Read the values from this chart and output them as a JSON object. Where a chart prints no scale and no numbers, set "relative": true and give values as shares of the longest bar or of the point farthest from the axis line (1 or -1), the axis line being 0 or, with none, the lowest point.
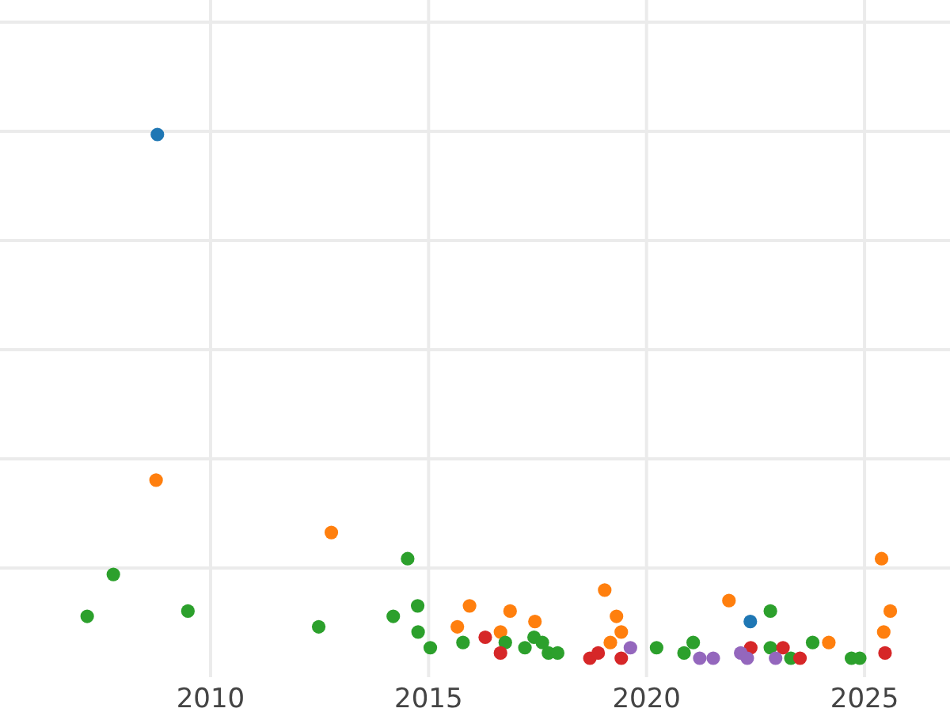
{
  "chart_data": {
    "type": "scatter",
    "relative": true,
    "grid": true,
    "marker": "circle",
    "xlim": [
      2005.17,
      2026.96
    ],
    "xticks": [
      2010,
      2015,
      2020,
      2025
    ],
    "series": [
      {
        "color": "#1f77b4",
        "x": [
          2008.78,
          2022.38
        ],
        "values": [
          1.0,
          0.07
        ]
      },
      {
        "color": "#ff7f0e",
        "x": [
          2008.75,
          2012.77,
          2019.04,
          2015.94,
          2015.66,
          2016.87,
          2016.65,
          2017.44,
          2019.31,
          2019.42,
          2019.17,
          2021.89,
          2024.18,
          2025.39,
          2025.59,
          2025.44
        ],
        "values": [
          0.34,
          0.24,
          0.13,
          0.1,
          0.06,
          0.09,
          0.05,
          0.07,
          0.08,
          0.05,
          0.03,
          0.11,
          0.03,
          0.19,
          0.09,
          0.05
        ]
      },
      {
        "color": "#2ca02c",
        "x": [
          2007.17,
          2007.77,
          2009.48,
          2012.48,
          2014.19,
          2014.52,
          2014.75,
          2014.76,
          2015.04,
          2015.79,
          2016.76,
          2017.21,
          2017.42,
          2017.61,
          2017.75,
          2017.96,
          2020.23,
          2020.86,
          2021.07,
          2022.84,
          2022.84,
          2023.31,
          2023.81,
          2024.7,
          2024.89
        ],
        "values": [
          0.08,
          0.16,
          0.09,
          0.06,
          0.08,
          0.19,
          0.1,
          0.05,
          0.02,
          0.03,
          0.03,
          0.02,
          0.04,
          0.03,
          0.01,
          0.01,
          0.02,
          0.01,
          0.03,
          0.09,
          0.02,
          0.0,
          0.03,
          0.0,
          0.0
        ]
      },
      {
        "color": "#d62728",
        "x": [
          2016.3,
          2016.65,
          2018.7,
          2018.89,
          2019.42,
          2022.39,
          2023.13,
          2023.52,
          2025.47
        ],
        "values": [
          0.04,
          0.01,
          0.0,
          0.01,
          0.0,
          0.02,
          0.02,
          0.0,
          0.01
        ]
      },
      {
        "color": "#9467bd",
        "x": [
          2019.63,
          2021.22,
          2021.53,
          2022.16,
          2022.31,
          2022.96
        ],
        "values": [
          0.02,
          0.0,
          0.0,
          0.01,
          0.0,
          0.0
        ]
      }
    ]
  }
}
